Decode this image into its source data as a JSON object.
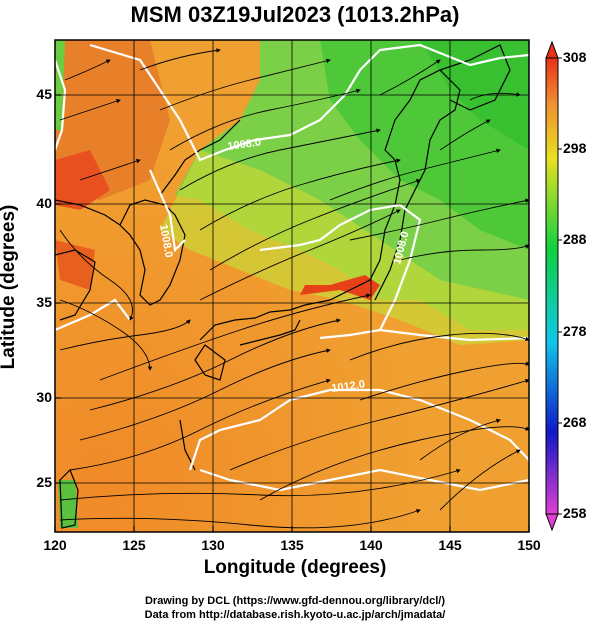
{
  "title": "MSM 03Z19Jul2023 (1013.2hPa)",
  "x_axis": {
    "label": "Longitude (degrees)",
    "range": [
      120,
      150
    ],
    "ticks": [
      "120",
      "125",
      "130",
      "135",
      "140",
      "145",
      "150"
    ]
  },
  "y_axis": {
    "label": "Latitude  (degrees)",
    "range": [
      22.5,
      47.5
    ],
    "ticks": [
      "25",
      "30",
      "35",
      "40",
      "45"
    ]
  },
  "colorbar": {
    "range": [
      258,
      308
    ],
    "ticks": [
      "258",
      "268",
      "278",
      "288",
      "298",
      "308"
    ],
    "colors": [
      "#e040d0",
      "#1018c8",
      "#10c8e8",
      "#10d040",
      "#e8e020",
      "#f09030",
      "#e83018"
    ]
  },
  "isobars": [
    {
      "label": "1008.0"
    },
    {
      "label": "1008.0"
    },
    {
      "label": "1008.0"
    },
    {
      "label": "1012.0"
    }
  ],
  "credit": {
    "line1": "Drawing by DCL (https://www.gfd-dennou.org/library/dcl/)",
    "line2": "Data from http://database.rish.kyoto-u.ac.jp/arch/jmadata/"
  }
}
